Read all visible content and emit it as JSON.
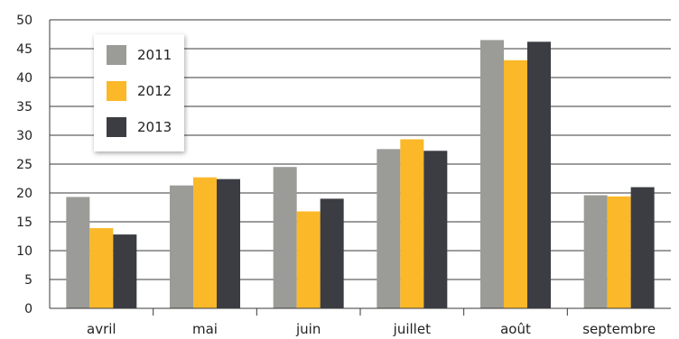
{
  "chart_data": {
    "type": "bar",
    "categories": [
      "avril",
      "mai",
      "juin",
      "juillet",
      "août",
      "septembre"
    ],
    "series": [
      {
        "name": "2011",
        "color": "#9b9c97",
        "values": [
          19.3,
          21.3,
          24.5,
          27.6,
          46.5,
          19.6
        ]
      },
      {
        "name": "2012",
        "color": "#fbb829",
        "values": [
          13.9,
          22.7,
          16.8,
          29.3,
          43.0,
          19.4
        ]
      },
      {
        "name": "2013",
        "color": "#3b3d43",
        "values": [
          12.8,
          22.4,
          19.0,
          27.3,
          46.2,
          21.0
        ]
      }
    ],
    "ylim": [
      0,
      50
    ],
    "yticks": [
      "0",
      "5",
      "10",
      "15",
      "20",
      "25",
      "30",
      "35",
      "40",
      "45",
      "50"
    ],
    "grid": true,
    "legend_position": "top-left",
    "title": "",
    "xlabel": "",
    "ylabel": ""
  }
}
